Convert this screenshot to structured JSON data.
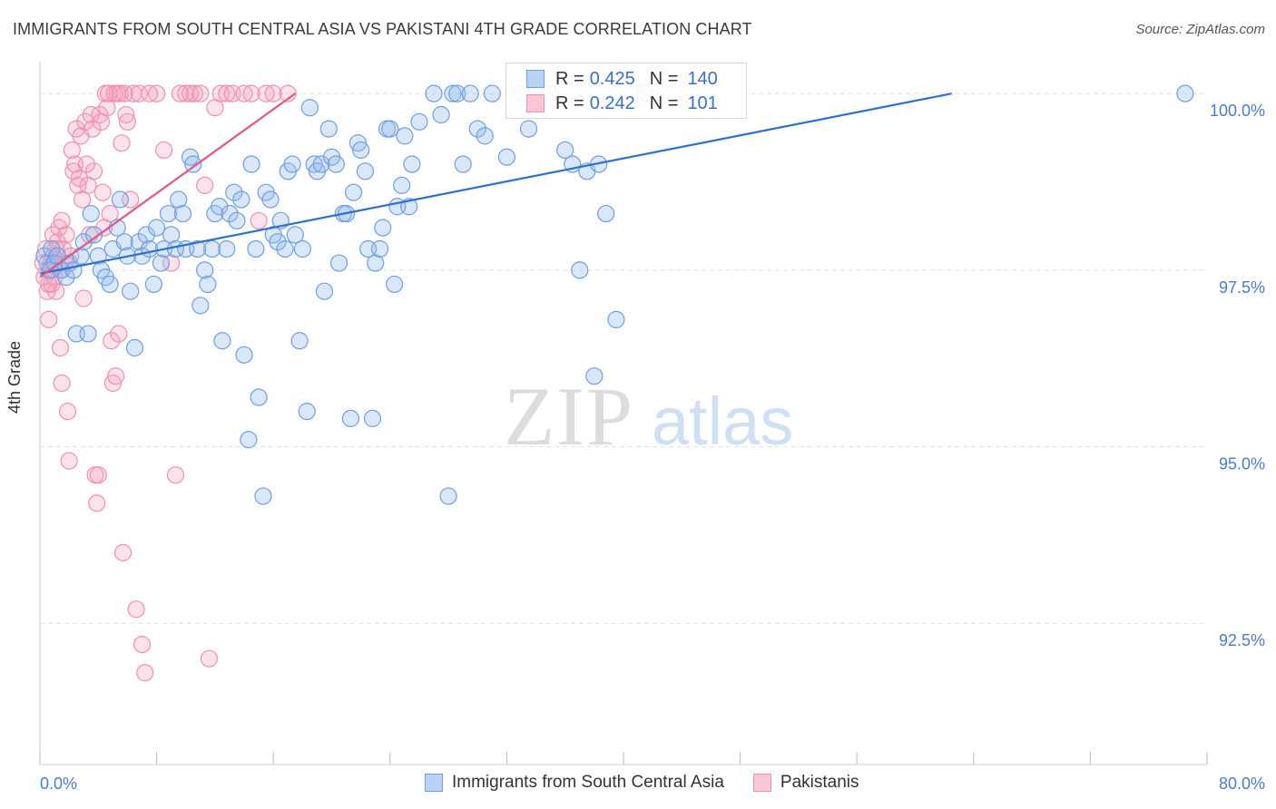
{
  "title": "IMMIGRANTS FROM SOUTH CENTRAL ASIA VS PAKISTANI 4TH GRADE CORRELATION CHART",
  "source": "Source: ZipAtlas.com",
  "watermark": {
    "zip": "ZIP",
    "atlas": "atlas"
  },
  "legend": {
    "rows": [
      {
        "r_key": "R =",
        "r_value": "0.425",
        "n_key": "N =",
        "n_value": "140"
      },
      {
        "r_key": "R =",
        "r_value": "0.242",
        "n_key": "N =",
        "n_value": "101"
      }
    ]
  },
  "chart_data": {
    "type": "scatter",
    "title": "IMMIGRANTS FROM SOUTH CENTRAL ASIA VS PAKISTANI 4TH GRADE CORRELATION CHART",
    "xlabel": "",
    "ylabel": "4th Grade",
    "xlim": [
      0,
      80
    ],
    "ylim": [
      90.5,
      100.4
    ],
    "x_tick_labels": [
      {
        "value": 0,
        "label": "0.0%"
      },
      {
        "value": 80,
        "label": "80.0%"
      }
    ],
    "y_tick_labels": [
      {
        "value": 100,
        "label": "100.0%"
      },
      {
        "value": 97.5,
        "label": "97.5%"
      },
      {
        "value": 95,
        "label": "95.0%"
      },
      {
        "value": 92.5,
        "label": "92.5%"
      }
    ],
    "grid": true,
    "colors": {
      "blue": "#6f9fe0",
      "blue_line": "#2f6fcf",
      "pink": "#f090b0",
      "pink_line": "#e0558a"
    },
    "series": [
      {
        "name": "Immigrants from South Central Asia",
        "color": "blue",
        "R": 0.425,
        "N": 140,
        "trend": {
          "x": [
            0,
            62.5
          ],
          "y": [
            97.45,
            100.0
          ]
        },
        "points": [
          [
            0.3,
            97.7
          ],
          [
            0.5,
            97.6
          ],
          [
            0.7,
            97.5
          ],
          [
            0.8,
            97.8
          ],
          [
            1.0,
            97.6
          ],
          [
            1.2,
            97.7
          ],
          [
            1.5,
            97.5
          ],
          [
            1.8,
            97.4
          ],
          [
            2.0,
            97.6
          ],
          [
            2.3,
            97.5
          ],
          [
            2.5,
            96.6
          ],
          [
            2.8,
            97.7
          ],
          [
            3.0,
            97.9
          ],
          [
            3.3,
            96.6
          ],
          [
            3.5,
            98.3
          ],
          [
            3.7,
            98.0
          ],
          [
            4.0,
            97.7
          ],
          [
            4.2,
            97.5
          ],
          [
            4.5,
            97.4
          ],
          [
            4.8,
            97.3
          ],
          [
            5.0,
            97.8
          ],
          [
            5.3,
            98.1
          ],
          [
            5.5,
            98.5
          ],
          [
            5.8,
            97.9
          ],
          [
            6.0,
            97.7
          ],
          [
            6.2,
            97.2
          ],
          [
            6.5,
            96.4
          ],
          [
            6.8,
            97.9
          ],
          [
            7.0,
            97.7
          ],
          [
            7.3,
            98.0
          ],
          [
            7.5,
            97.8
          ],
          [
            7.8,
            97.3
          ],
          [
            8.0,
            98.1
          ],
          [
            8.3,
            97.6
          ],
          [
            8.5,
            97.8
          ],
          [
            8.8,
            98.3
          ],
          [
            9.0,
            98.0
          ],
          [
            9.3,
            97.8
          ],
          [
            9.5,
            98.5
          ],
          [
            9.8,
            98.3
          ],
          [
            10.0,
            97.8
          ],
          [
            10.3,
            99.1
          ],
          [
            10.5,
            99.0
          ],
          [
            10.8,
            97.8
          ],
          [
            11.0,
            97.0
          ],
          [
            11.3,
            97.5
          ],
          [
            11.5,
            97.3
          ],
          [
            11.8,
            97.8
          ],
          [
            12.0,
            98.3
          ],
          [
            12.3,
            98.4
          ],
          [
            12.5,
            96.5
          ],
          [
            12.8,
            97.8
          ],
          [
            13.0,
            98.3
          ],
          [
            13.3,
            98.6
          ],
          [
            13.5,
            98.2
          ],
          [
            13.8,
            98.5
          ],
          [
            14.0,
            96.3
          ],
          [
            14.3,
            95.1
          ],
          [
            14.5,
            99.0
          ],
          [
            14.8,
            97.8
          ],
          [
            15.0,
            95.7
          ],
          [
            15.3,
            94.3
          ],
          [
            15.5,
            98.6
          ],
          [
            15.8,
            98.5
          ],
          [
            16.0,
            98.0
          ],
          [
            16.3,
            97.9
          ],
          [
            16.5,
            98.2
          ],
          [
            16.8,
            97.8
          ],
          [
            17.0,
            98.9
          ],
          [
            17.3,
            99.0
          ],
          [
            17.5,
            98.0
          ],
          [
            17.8,
            96.5
          ],
          [
            18.0,
            97.8
          ],
          [
            18.3,
            95.5
          ],
          [
            18.5,
            99.8
          ],
          [
            18.8,
            99.0
          ],
          [
            19.0,
            98.9
          ],
          [
            19.3,
            99.0
          ],
          [
            19.5,
            97.2
          ],
          [
            19.8,
            99.5
          ],
          [
            20.0,
            99.1
          ],
          [
            20.3,
            99.0
          ],
          [
            20.5,
            97.6
          ],
          [
            20.8,
            98.3
          ],
          [
            21.0,
            98.3
          ],
          [
            21.3,
            95.4
          ],
          [
            21.5,
            98.6
          ],
          [
            21.8,
            99.3
          ],
          [
            22.0,
            99.2
          ],
          [
            22.3,
            98.9
          ],
          [
            22.5,
            97.8
          ],
          [
            22.8,
            95.4
          ],
          [
            23.0,
            97.6
          ],
          [
            23.3,
            97.8
          ],
          [
            23.5,
            98.1
          ],
          [
            23.8,
            99.5
          ],
          [
            24.0,
            99.5
          ],
          [
            24.3,
            97.3
          ],
          [
            24.5,
            98.4
          ],
          [
            24.8,
            98.7
          ],
          [
            25.0,
            99.4
          ],
          [
            25.3,
            98.4
          ],
          [
            25.5,
            99.0
          ],
          [
            26.0,
            99.6
          ],
          [
            27.0,
            100.0
          ],
          [
            27.5,
            99.7
          ],
          [
            28.0,
            94.3
          ],
          [
            28.3,
            100.0
          ],
          [
            28.6,
            100.0
          ],
          [
            29.0,
            99.0
          ],
          [
            29.5,
            100.0
          ],
          [
            30.0,
            99.5
          ],
          [
            30.5,
            99.4
          ],
          [
            31.0,
            100.0
          ],
          [
            32.0,
            99.1
          ],
          [
            33.0,
            100.0
          ],
          [
            33.5,
            99.5
          ],
          [
            34.0,
            100.0
          ],
          [
            35.0,
            100.0
          ],
          [
            36.0,
            99.2
          ],
          [
            36.5,
            99.0
          ],
          [
            37.0,
            97.5
          ],
          [
            37.5,
            98.9
          ],
          [
            38.0,
            96.0
          ],
          [
            38.3,
            99.0
          ],
          [
            38.8,
            98.3
          ],
          [
            39.5,
            96.8
          ],
          [
            41.5,
            100.0
          ],
          [
            78.5,
            100.0
          ]
        ]
      },
      {
        "name": "Pakistanis",
        "color": "pink",
        "R": 0.242,
        "N": 101,
        "trend": {
          "x": [
            0,
            17.5
          ],
          "y": [
            97.4,
            100.0
          ]
        },
        "points": [
          [
            0.2,
            97.6
          ],
          [
            0.3,
            97.4
          ],
          [
            0.4,
            97.8
          ],
          [
            0.5,
            97.2
          ],
          [
            0.6,
            96.8
          ],
          [
            0.7,
            97.5
          ],
          [
            0.8,
            97.3
          ],
          [
            0.9,
            97.7
          ],
          [
            1.0,
            97.6
          ],
          [
            1.1,
            97.2
          ],
          [
            1.2,
            97.9
          ],
          [
            1.3,
            98.1
          ],
          [
            1.4,
            96.4
          ],
          [
            1.5,
            98.2
          ],
          [
            1.5,
            95.9
          ],
          [
            1.6,
            97.8
          ],
          [
            1.7,
            97.6
          ],
          [
            1.8,
            98.0
          ],
          [
            1.9,
            95.5
          ],
          [
            2.0,
            94.8
          ],
          [
            2.1,
            97.7
          ],
          [
            2.2,
            99.2
          ],
          [
            2.3,
            98.9
          ],
          [
            2.4,
            99.0
          ],
          [
            2.5,
            99.5
          ],
          [
            2.6,
            98.7
          ],
          [
            2.7,
            98.8
          ],
          [
            2.8,
            99.4
          ],
          [
            2.9,
            98.5
          ],
          [
            3.0,
            97.1
          ],
          [
            3.1,
            99.6
          ],
          [
            3.2,
            99.0
          ],
          [
            3.3,
            98.7
          ],
          [
            3.4,
            98.0
          ],
          [
            3.5,
            99.7
          ],
          [
            3.6,
            99.5
          ],
          [
            3.7,
            98.9
          ],
          [
            3.8,
            94.6
          ],
          [
            3.9,
            94.2
          ],
          [
            4.0,
            94.6
          ],
          [
            4.1,
            99.7
          ],
          [
            4.2,
            99.6
          ],
          [
            4.3,
            98.6
          ],
          [
            4.4,
            98.1
          ],
          [
            4.5,
            100.0
          ],
          [
            4.6,
            99.8
          ],
          [
            4.7,
            100.0
          ],
          [
            4.8,
            98.3
          ],
          [
            4.9,
            96.5
          ],
          [
            5.0,
            95.9
          ],
          [
            5.1,
            100.0
          ],
          [
            5.2,
            96.0
          ],
          [
            5.3,
            100.0
          ],
          [
            5.4,
            96.6
          ],
          [
            5.5,
            100.0
          ],
          [
            5.6,
            99.3
          ],
          [
            5.7,
            93.5
          ],
          [
            5.8,
            100.0
          ],
          [
            5.9,
            99.7
          ],
          [
            6.0,
            99.6
          ],
          [
            6.2,
            98.5
          ],
          [
            6.4,
            100.0
          ],
          [
            6.6,
            92.7
          ],
          [
            6.8,
            100.0
          ],
          [
            7.0,
            92.2
          ],
          [
            7.2,
            91.8
          ],
          [
            7.5,
            100.0
          ],
          [
            8.0,
            100.0
          ],
          [
            8.5,
            99.2
          ],
          [
            9.0,
            97.6
          ],
          [
            9.3,
            94.6
          ],
          [
            9.6,
            100.0
          ],
          [
            10.0,
            100.0
          ],
          [
            10.3,
            100.0
          ],
          [
            10.6,
            100.0
          ],
          [
            11.0,
            100.0
          ],
          [
            11.3,
            98.7
          ],
          [
            11.6,
            92.0
          ],
          [
            12.0,
            99.8
          ],
          [
            12.4,
            100.0
          ],
          [
            12.8,
            100.0
          ],
          [
            13.2,
            100.0
          ],
          [
            14.0,
            100.0
          ],
          [
            14.5,
            100.0
          ],
          [
            15.0,
            98.2
          ],
          [
            15.5,
            100.0
          ],
          [
            16.0,
            100.0
          ],
          [
            17.0,
            100.0
          ],
          [
            0.5,
            97.5
          ],
          [
            0.8,
            97.6
          ],
          [
            1.0,
            97.4
          ],
          [
            1.2,
            97.7
          ],
          [
            1.4,
            97.5
          ],
          [
            0.6,
            97.3
          ],
          [
            0.9,
            98.0
          ],
          [
            1.1,
            97.8
          ]
        ]
      }
    ]
  }
}
